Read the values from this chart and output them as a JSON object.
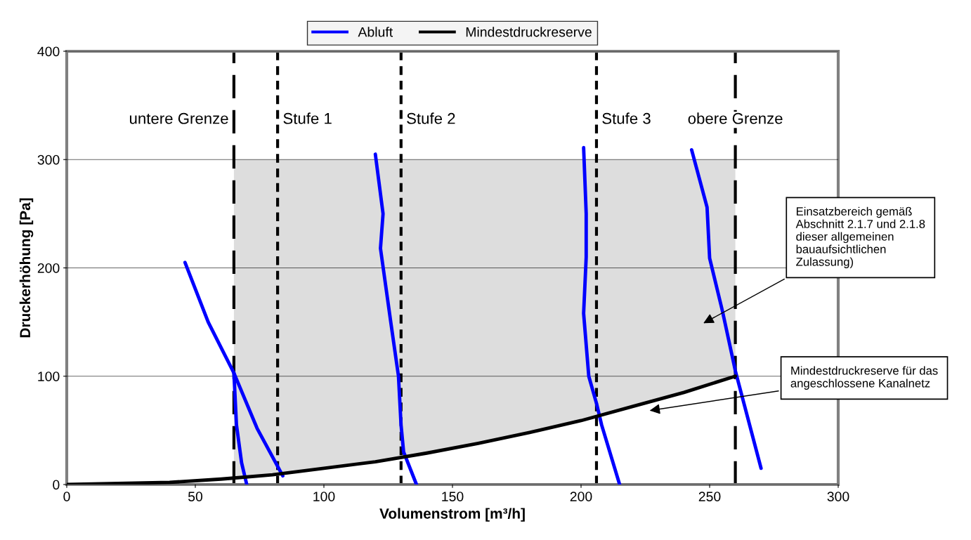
{
  "chart_data": {
    "type": "line",
    "xlabel": "Volumenstrom [m³/h]",
    "ylabel": "Druckerhöhung [Pa]",
    "xlim": [
      0,
      300
    ],
    "ylim": [
      0,
      400
    ],
    "xticks": [
      0,
      50,
      100,
      150,
      200,
      250,
      300
    ],
    "yticks": [
      0,
      100,
      200,
      300,
      400
    ],
    "grid": "y",
    "legend": "top",
    "marker": "none",
    "line_style": "solid",
    "series": [
      {
        "type": "area",
        "color": "#dddddd",
        "x": [
          65,
          80,
          100,
          120,
          140,
          160,
          180,
          200,
          220,
          240,
          260
        ],
        "values": [
          300,
          300,
          300,
          300,
          300,
          300,
          300,
          300,
          300,
          300,
          300
        ]
      },
      {
        "name": "Abluft",
        "color": "#0000ff",
        "x": [
          46,
          55,
          65,
          66,
          68,
          70
        ],
        "values": [
          205,
          150,
          103,
          55,
          20,
          0
        ]
      },
      {
        "color": "#0000ff",
        "x": [
          65,
          74,
          84
        ],
        "values": [
          103,
          52,
          8
        ]
      },
      {
        "color": "#0000ff",
        "x": [
          120,
          123,
          122,
          126,
          129,
          130,
          131,
          136
        ],
        "values": [
          305,
          250,
          218,
          150,
          100,
          55,
          30,
          0
        ]
      },
      {
        "color": "#0000ff",
        "x": [
          201,
          202,
          202,
          201,
          203,
          206,
          208,
          215
        ],
        "values": [
          311,
          250,
          210,
          158,
          100,
          75,
          55,
          0
        ]
      },
      {
        "color": "#0000ff",
        "x": [
          243,
          249,
          250,
          255,
          260,
          270
        ],
        "values": [
          309,
          256,
          209,
          160,
          105,
          15
        ]
      },
      {
        "name": "Mindestdruckreserve",
        "color": "#000000",
        "x": [
          0,
          20,
          40,
          60,
          65,
          80,
          100,
          120,
          140,
          160,
          180,
          200,
          220,
          240,
          260
        ],
        "values": [
          0,
          1,
          2,
          5,
          6,
          9,
          15,
          21,
          29,
          38,
          48,
          59,
          72,
          85,
          100
        ]
      }
    ],
    "ref_lines": [
      {
        "axis": "x",
        "value": 65,
        "label": "untere Grenze",
        "color": "#000000",
        "line_style": "longdash"
      },
      {
        "axis": "x",
        "value": 82,
        "label": "Stufe 1",
        "color": "#000000",
        "line_style": "dashed"
      },
      {
        "axis": "x",
        "value": 130,
        "label": "Stufe 2",
        "color": "#000000",
        "line_style": "dashed"
      },
      {
        "axis": "x",
        "value": 206,
        "label": "Stufe 3",
        "color": "#000000",
        "line_style": "dashed"
      },
      {
        "axis": "x",
        "value": 260,
        "label": "obere Grenze",
        "color": "#000000",
        "line_style": "longdash"
      }
    ],
    "annotations": [
      "Einsatzbereich gemäß\nAbschnitt 2.1.7 und 2.1.8\ndieser allgemeinen\nbauaufsichtlichen\nZulassung)",
      "Mindestdruckreserve für das\nangeschlossene Kanalnetz"
    ]
  }
}
